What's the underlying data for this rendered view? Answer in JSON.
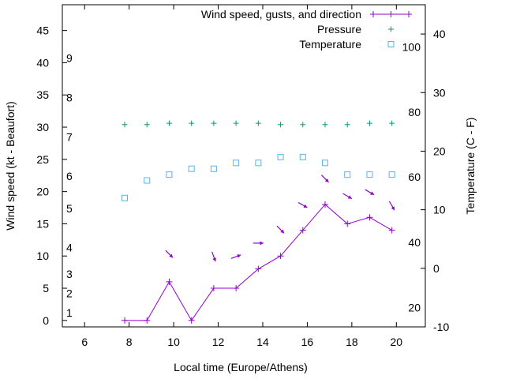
{
  "chart_data": {
    "type": "line",
    "xlabel": "Local time (Europe/Athens)",
    "ylabel_left": "Wind speed (kt - Beaufort)",
    "ylabel_right": "Temperature (C - F)",
    "xlim": [
      5,
      21.3
    ],
    "ylim_left": [
      -1,
      49
    ],
    "ylim_right": [
      -10,
      45
    ],
    "x_ticks": [
      6,
      8,
      10,
      12,
      14,
      16,
      18,
      20
    ],
    "y_ticks_left": [
      0,
      5,
      10,
      15,
      20,
      25,
      30,
      35,
      40,
      45
    ],
    "y_ticks_right": [
      -10,
      0,
      10,
      20,
      30,
      40
    ],
    "beaufort_labels": [
      {
        "label": "1",
        "kt": 1.2
      },
      {
        "label": "2",
        "kt": 4.2
      },
      {
        "label": "3",
        "kt": 7.2
      },
      {
        "label": "4",
        "kt": 11.3
      },
      {
        "label": "5",
        "kt": 17.4
      },
      {
        "label": "6",
        "kt": 22.4
      },
      {
        "label": "7",
        "kt": 28.5
      },
      {
        "label": "8",
        "kt": 34.6
      },
      {
        "label": "9",
        "kt": 40.7
      }
    ],
    "fahrenheit_labels": [
      {
        "label": "20",
        "c": -6.7
      },
      {
        "label": "40",
        "c": 4.4
      },
      {
        "label": "60",
        "c": 15.6
      },
      {
        "label": "80",
        "c": 26.7
      },
      {
        "label": "100",
        "c": 37.8
      }
    ],
    "legend": {
      "position": "top-right",
      "entries": [
        "Wind speed, gusts, and direction",
        "Pressure",
        "Temperature"
      ]
    },
    "series": [
      {
        "name": "Wind speed, gusts, and direction",
        "color": "#9400d3",
        "axis": "left",
        "x": [
          7.8,
          8.8,
          9.8,
          10.8,
          11.8,
          12.8,
          13.8,
          14.8,
          15.8,
          16.8,
          17.8,
          18.8,
          19.8
        ],
        "values": [
          0,
          0,
          6,
          0,
          5,
          5,
          8,
          10,
          14,
          18,
          15,
          16,
          14
        ]
      },
      {
        "name": "Wind direction",
        "color": "#9400d3",
        "axis": "left",
        "x": [
          9.8,
          11.8,
          12.8,
          13.8,
          14.8,
          15.8,
          16.8,
          17.8,
          18.8,
          19.8
        ],
        "y": [
          10.3,
          9.9,
          9.9,
          12.0,
          14.1,
          17.9,
          22.0,
          19.3,
          19.9,
          17.8
        ],
        "direction_deg": [
          315,
          340,
          250,
          270,
          315,
          300,
          315,
          300,
          300,
          330
        ]
      },
      {
        "name": "Pressure",
        "color": "#009e73",
        "axis": "left",
        "x": [
          7.8,
          8.8,
          9.8,
          10.8,
          11.8,
          12.8,
          13.8,
          14.8,
          15.8,
          16.8,
          17.8,
          18.8,
          19.8
        ],
        "values": [
          30.4,
          30.4,
          30.6,
          30.6,
          30.6,
          30.6,
          30.6,
          30.4,
          30.4,
          30.4,
          30.4,
          30.6,
          30.6
        ]
      },
      {
        "name": "Temperature",
        "color": "#56b4e9",
        "axis": "right",
        "x": [
          7.8,
          8.8,
          9.8,
          10.8,
          11.8,
          12.8,
          13.8,
          14.8,
          15.8,
          16.8,
          17.8,
          18.8,
          19.8
        ],
        "values": [
          12,
          15,
          16,
          17,
          17,
          18,
          18,
          19,
          19,
          18,
          16,
          16,
          16
        ]
      }
    ]
  }
}
